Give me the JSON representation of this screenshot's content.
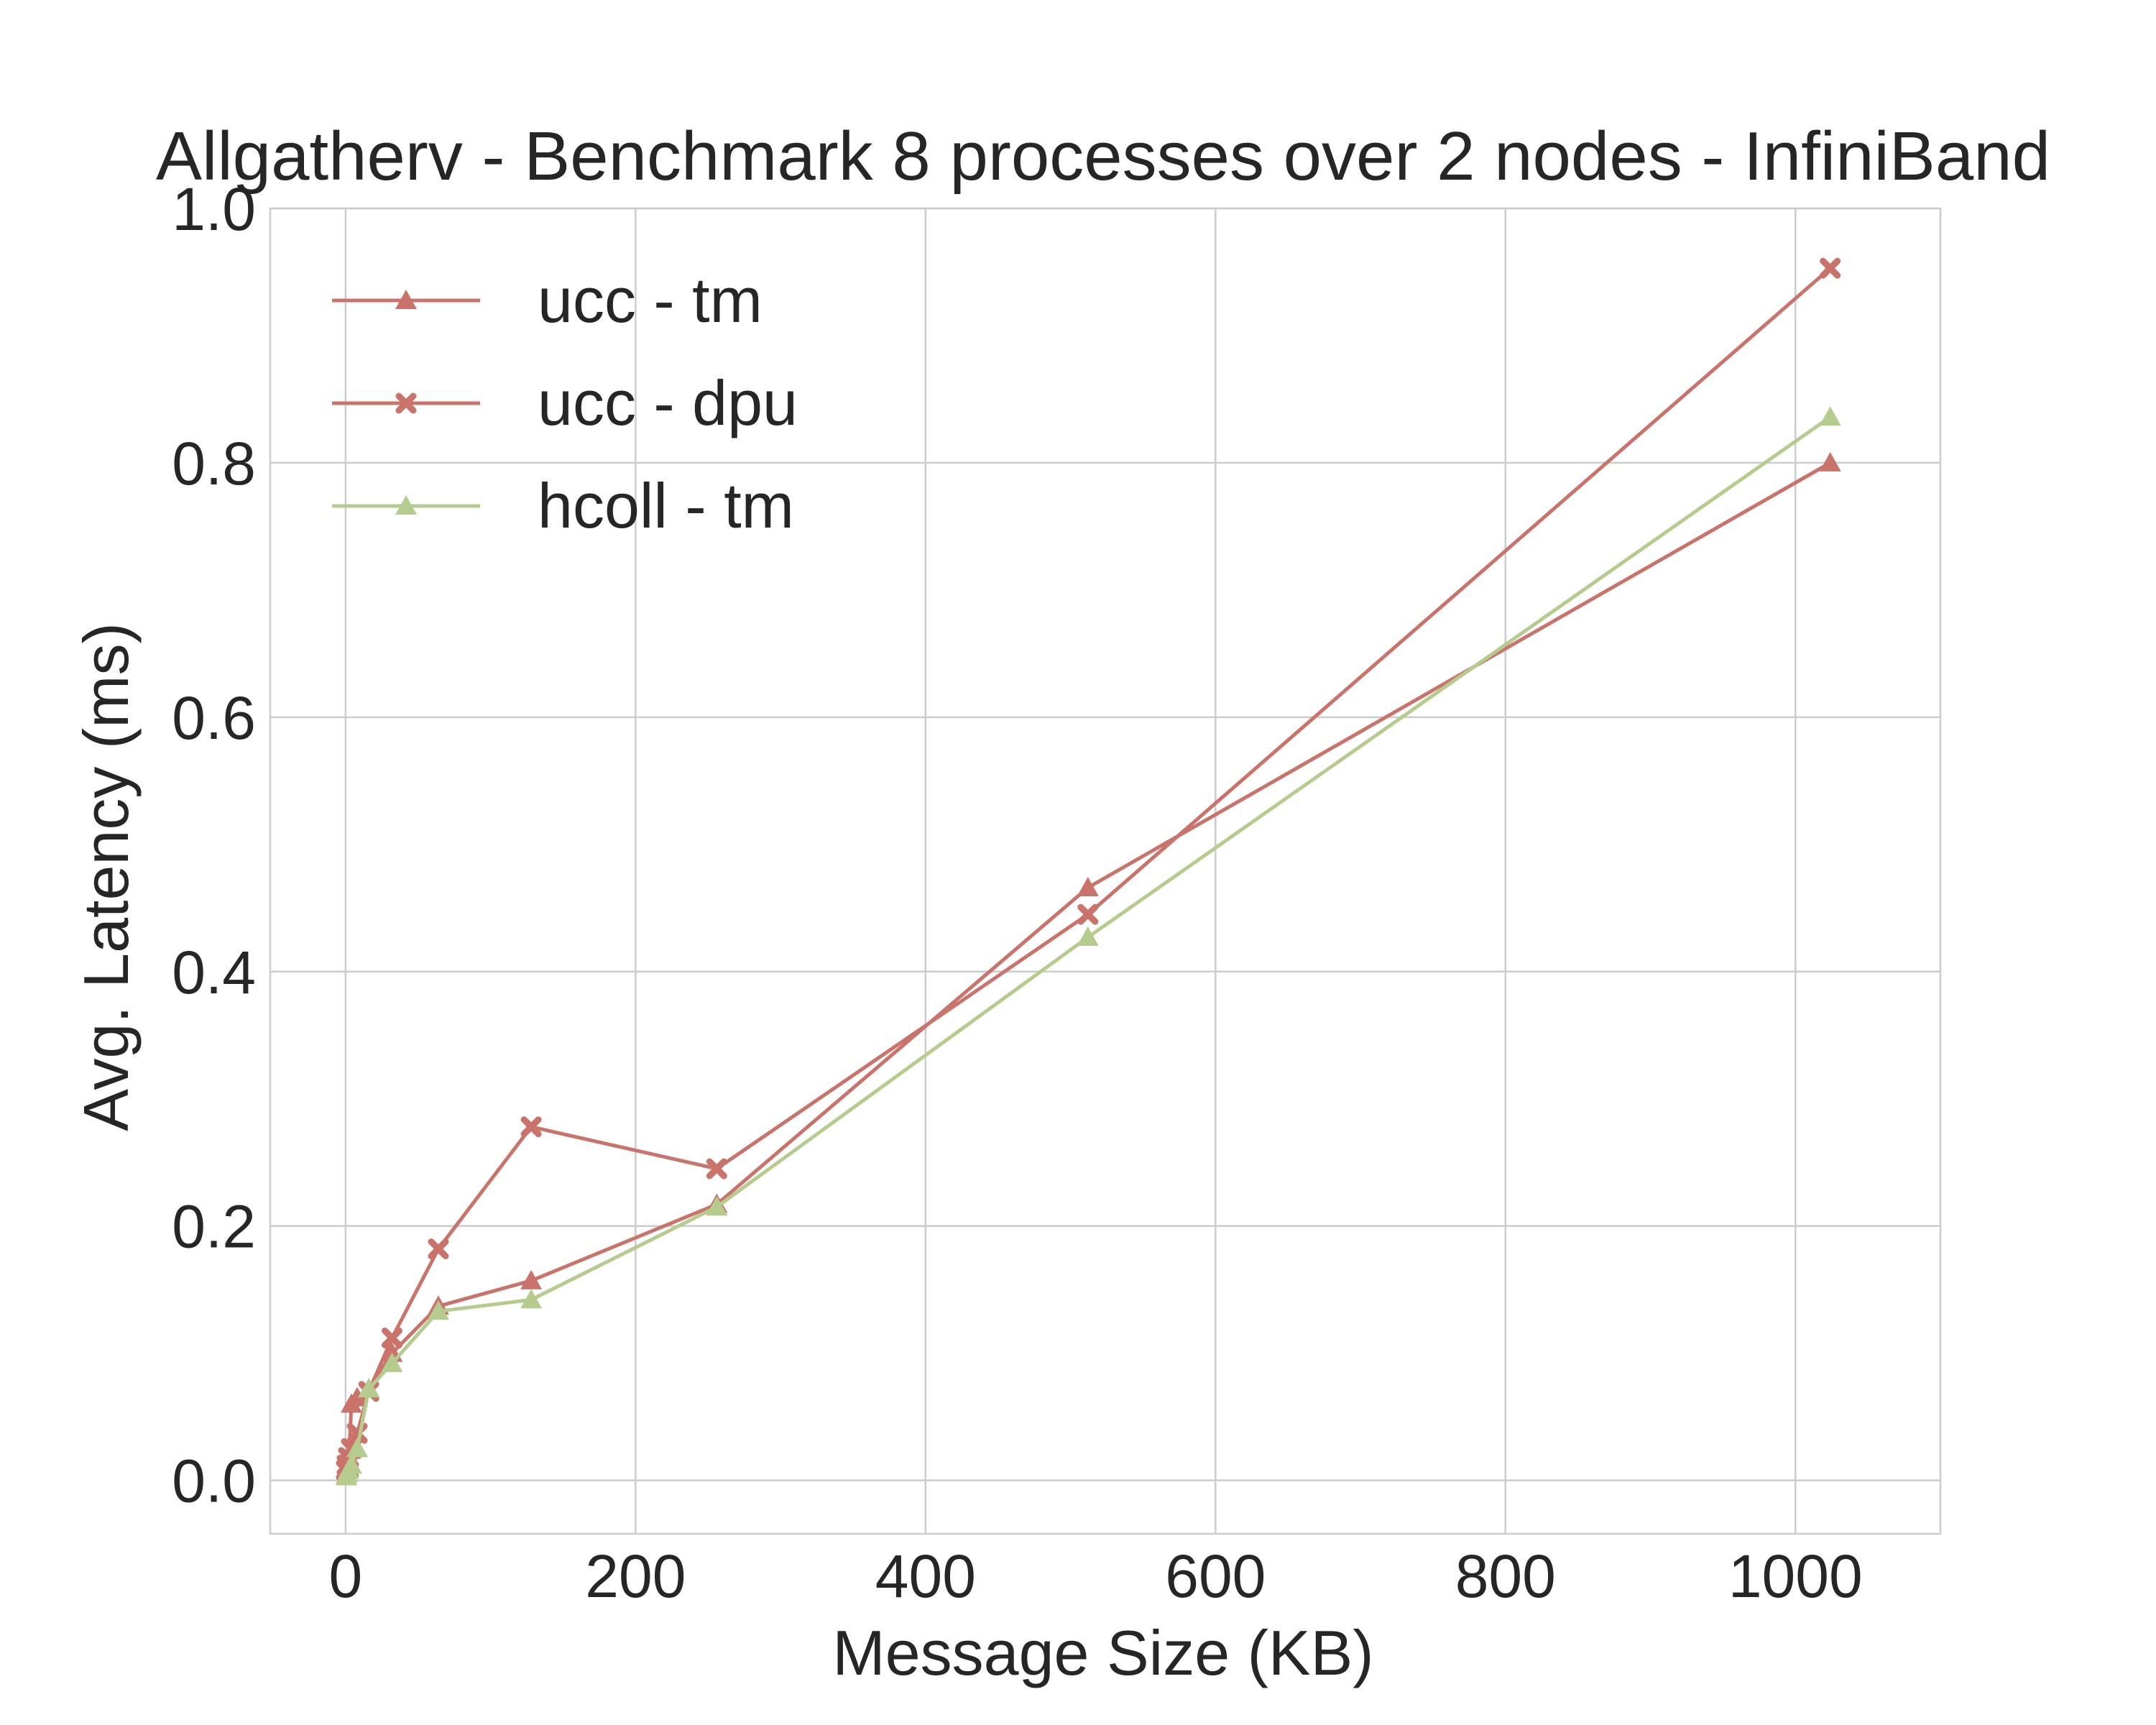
{
  "chart_data": {
    "type": "line",
    "title": "Allgatherv - Benchmark 8 processes over 2 nodes - InfiniBand",
    "xlabel": "Message Size (KB)",
    "ylabel": "Avg. Latency (ms)",
    "xlim": [
      -52,
      1100
    ],
    "ylim": [
      -0.042,
      1.0
    ],
    "xticks": [
      0,
      200,
      400,
      600,
      800,
      1000
    ],
    "yticks": [
      0.0,
      0.2,
      0.4,
      0.6,
      0.8,
      1.0
    ],
    "xtick_labels": [
      "0",
      "200",
      "400",
      "600",
      "800",
      "1000"
    ],
    "ytick_labels": [
      "0.0",
      "0.2",
      "0.4",
      "0.6",
      "0.8",
      "1.0"
    ],
    "grid": true,
    "legend": "top-left",
    "series": [
      {
        "name": "ucc - tm",
        "color": "#c9736b",
        "marker": "triangle",
        "x": [
          0.5,
          1,
          2,
          4,
          8,
          16,
          32,
          64,
          128,
          256,
          512,
          1024
        ],
        "y": [
          0.003,
          0.005,
          0.01,
          0.06,
          0.065,
          0.072,
          0.1,
          0.137,
          0.157,
          0.217,
          0.466,
          0.8
        ]
      },
      {
        "name": "ucc - dpu",
        "color": "#c9736b",
        "marker": "x",
        "x": [
          0.5,
          1,
          2,
          4,
          8,
          16,
          32,
          64,
          128,
          256,
          512,
          1024
        ],
        "y": [
          0.008,
          0.012,
          0.018,
          0.025,
          0.037,
          0.07,
          0.112,
          0.182,
          0.278,
          0.245,
          0.445,
          0.953
        ]
      },
      {
        "name": "hcoll - tm",
        "color": "#b5cc8e",
        "marker": "triangle",
        "x": [
          0.5,
          1,
          2,
          4,
          8,
          16,
          32,
          64,
          128,
          256,
          512,
          1024
        ],
        "y": [
          0.003,
          0.005,
          0.008,
          0.012,
          0.025,
          0.072,
          0.092,
          0.133,
          0.142,
          0.215,
          0.427,
          0.836
        ]
      }
    ]
  }
}
